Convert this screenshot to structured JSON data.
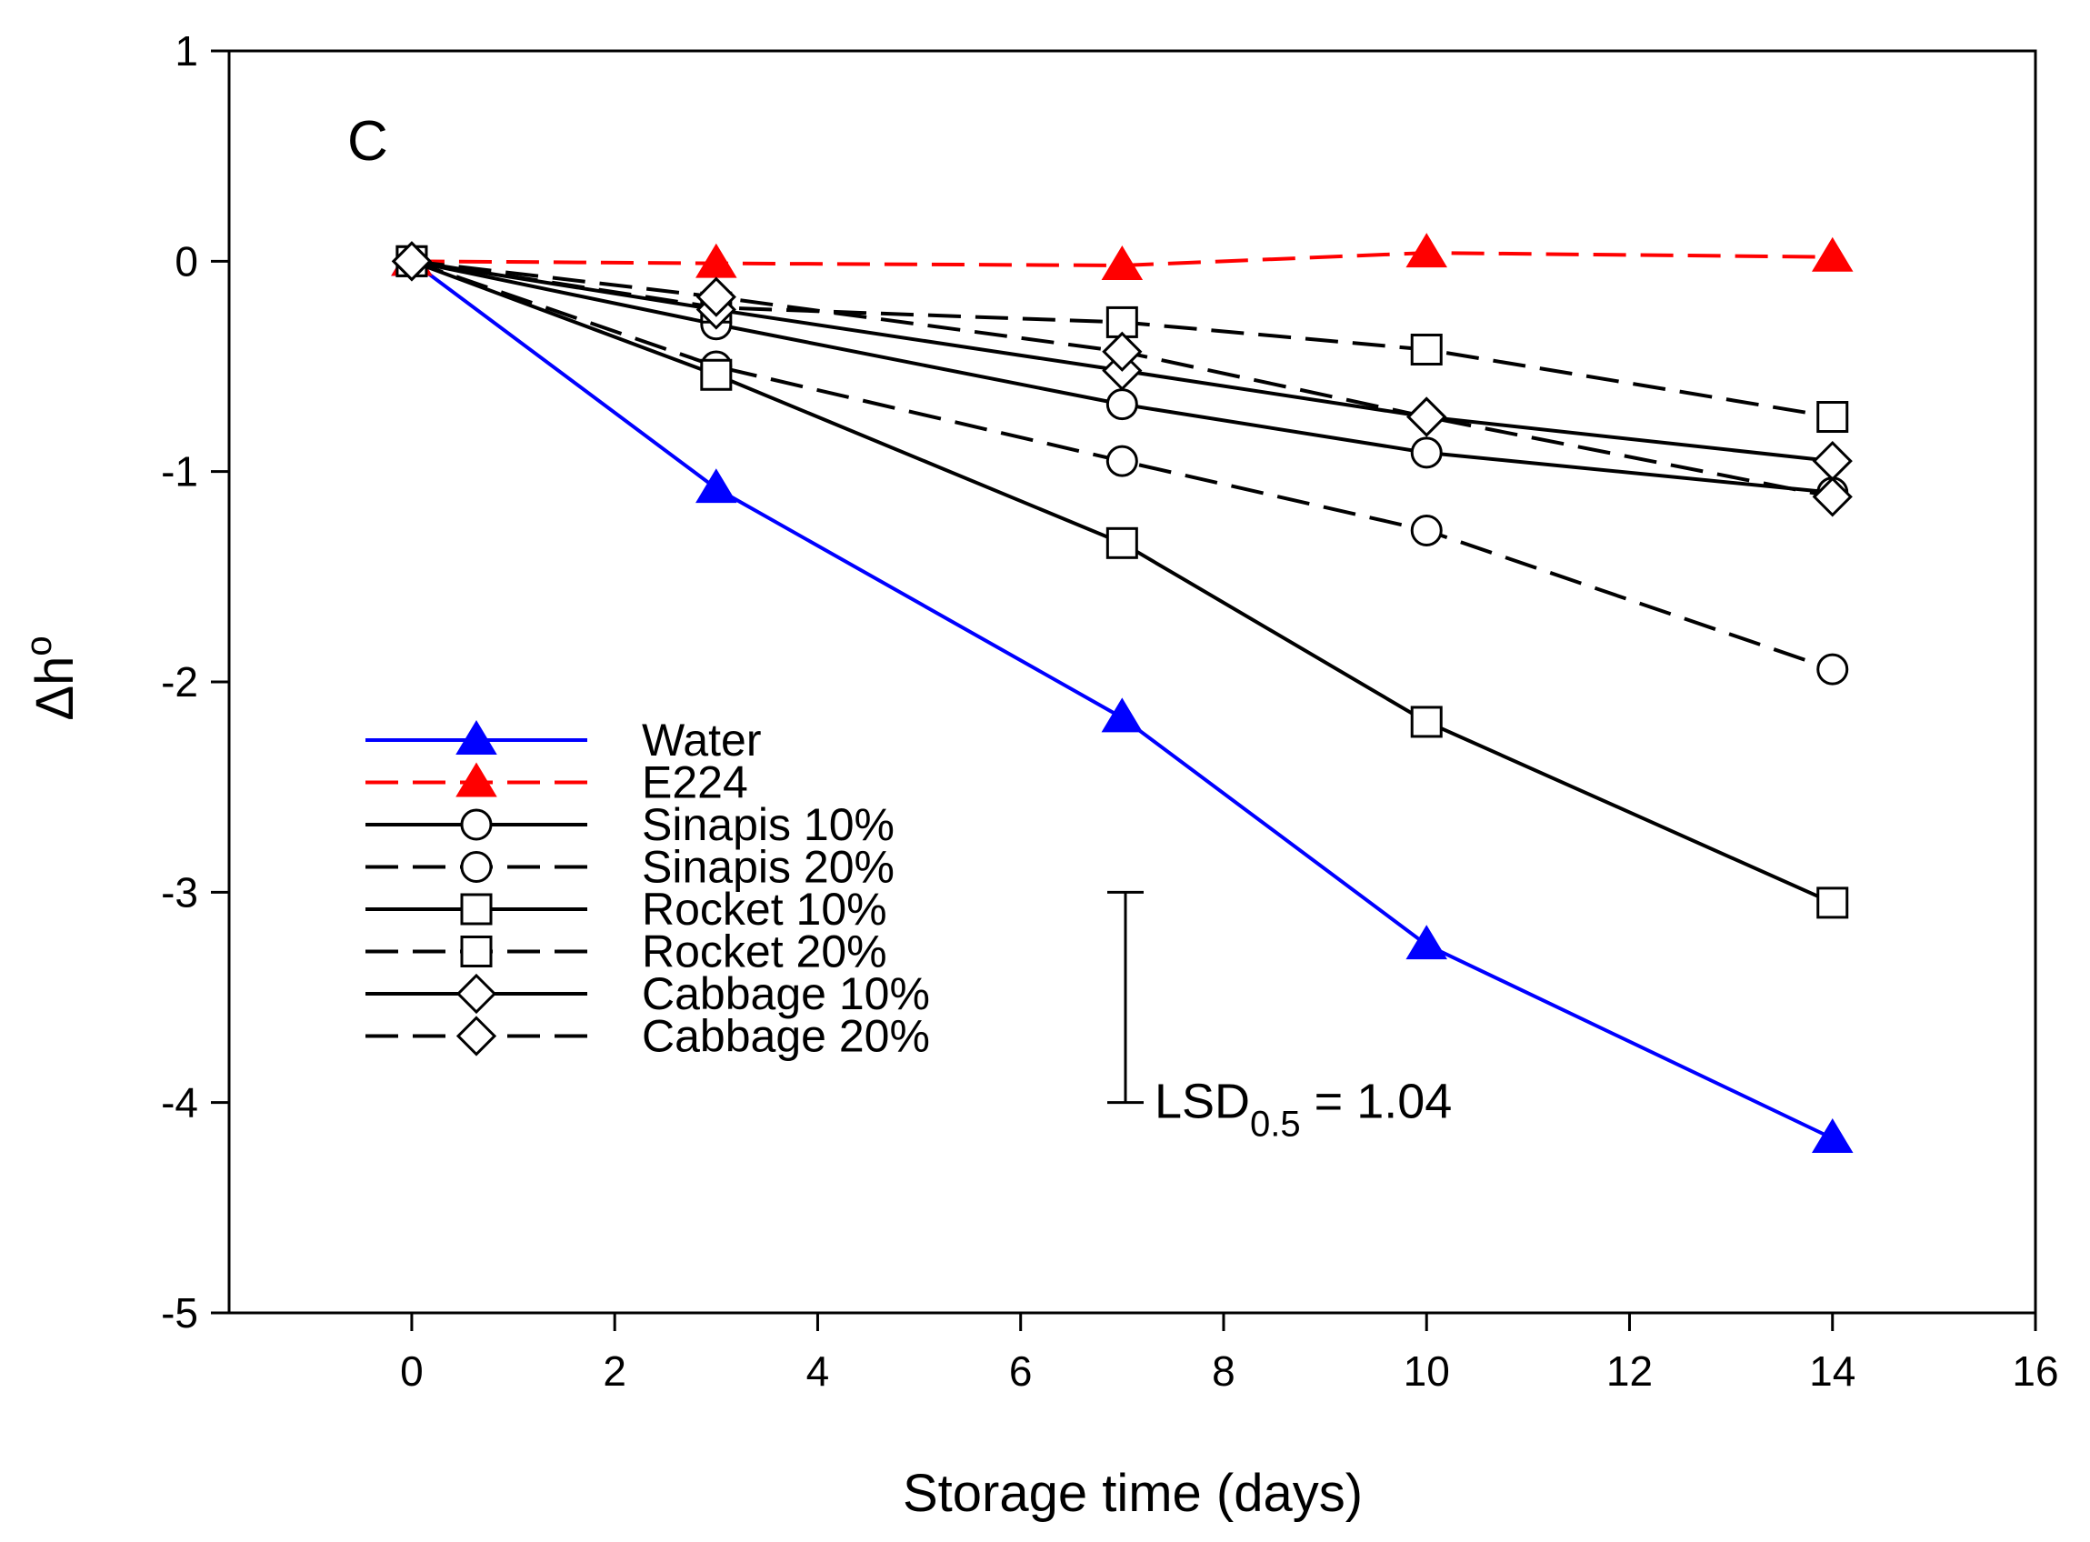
{
  "chart_data": {
    "type": "line",
    "panel_label": "C",
    "xlabel": "Storage time (days)",
    "ylabel_main": "Δh",
    "ylabel_sup": "o",
    "xlim": [
      -1.8,
      16
    ],
    "ylim": [
      -5,
      1
    ],
    "xticks": [
      0,
      2,
      4,
      6,
      8,
      10,
      12,
      14,
      16
    ],
    "yticks": [
      1,
      0,
      -1,
      -2,
      -3,
      -4,
      -5
    ],
    "x": [
      0,
      3,
      7,
      10,
      14
    ],
    "series": [
      {
        "name": "Water",
        "values": [
          0,
          -1.08,
          -2.17,
          -3.25,
          -4.17
        ],
        "color": "#0000ff",
        "dash": "solid",
        "marker": "triangle-filled"
      },
      {
        "name": "E224",
        "values": [
          0,
          -0.01,
          -0.02,
          0.04,
          0.02
        ],
        "color": "#ff0000",
        "dash": "dashed",
        "marker": "triangle-filled"
      },
      {
        "name": "Sinapis 10%",
        "values": [
          0,
          -0.3,
          -0.68,
          -0.91,
          -1.1
        ],
        "color": "#000000",
        "dash": "solid",
        "marker": "circle"
      },
      {
        "name": "Sinapis 20%",
        "values": [
          0,
          -0.5,
          -0.95,
          -1.28,
          -1.94
        ],
        "color": "#000000",
        "dash": "dashed",
        "marker": "circle"
      },
      {
        "name": "Rocket 10%",
        "values": [
          0,
          -0.54,
          -1.34,
          -2.19,
          -3.05
        ],
        "color": "#000000",
        "dash": "solid",
        "marker": "square"
      },
      {
        "name": "Rocket 20%",
        "values": [
          0,
          -0.22,
          -0.29,
          -0.42,
          -0.74
        ],
        "color": "#000000",
        "dash": "dashed",
        "marker": "square"
      },
      {
        "name": "Cabbage 10%",
        "values": [
          0,
          -0.23,
          -0.52,
          -0.74,
          -0.95
        ],
        "color": "#000000",
        "dash": "solid",
        "marker": "diamond"
      },
      {
        "name": "Cabbage 20%",
        "values": [
          0,
          -0.17,
          -0.43,
          -0.74,
          -1.12
        ],
        "color": "#000000",
        "dash": "dashed",
        "marker": "diamond"
      }
    ],
    "lsd": {
      "label_main": "LSD",
      "label_sub": "0.5",
      "label_value": "= 1.04",
      "x": 7,
      "y_top": -3.0,
      "y_bottom": -4.0
    },
    "legend_position": "center-left"
  }
}
